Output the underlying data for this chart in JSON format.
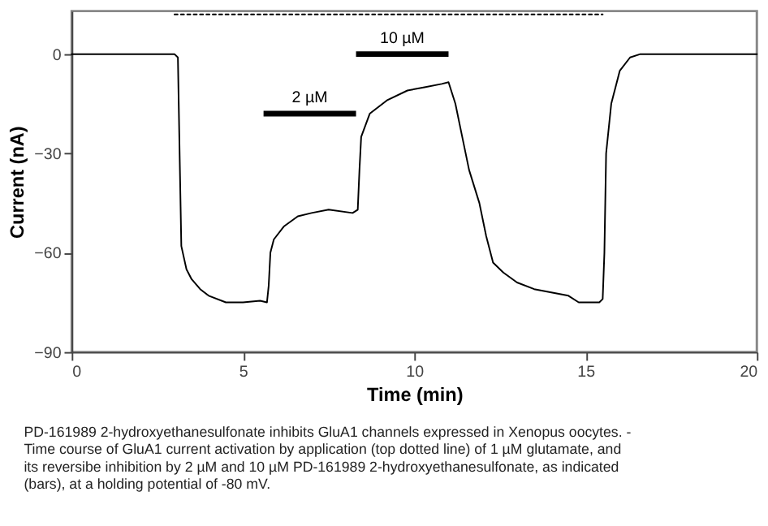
{
  "chart_data": {
    "type": "line",
    "xlabel": "Time (min)",
    "ylabel": "Current (nA)",
    "xlim": [
      0,
      20
    ],
    "ylim": [
      -90,
      13
    ],
    "xticks": [
      0,
      5,
      10,
      15,
      20
    ],
    "yticks": [
      -90,
      -60,
      -30,
      0
    ],
    "grid": false,
    "marker": "none",
    "series": [
      {
        "color": "#000000",
        "line_style": "solid",
        "x": [
          0,
          0.5,
          1,
          1.5,
          2,
          2.5,
          3.0,
          3.1,
          3.15,
          3.2,
          3.35,
          3.5,
          3.75,
          4,
          4.5,
          5,
          5.5,
          5.7,
          5.75,
          5.8,
          5.9,
          6.2,
          6.6,
          7,
          7.5,
          8.2,
          8.35,
          8.4,
          8.45,
          8.7,
          9.2,
          9.8,
          10.3,
          10.8,
          11.0,
          11.2,
          11.4,
          11.6,
          11.9,
          12.1,
          12.3,
          12.6,
          13.0,
          13.5,
          14,
          14.5,
          14.8,
          15.4,
          15.5,
          15.55,
          15.6,
          15.75,
          16.0,
          16.3,
          16.6,
          17,
          18,
          19,
          20
        ],
        "values": [
          0,
          0,
          0,
          0,
          0,
          0,
          0,
          -1,
          -30,
          -58,
          -65,
          -68,
          -71,
          -73,
          -75,
          -75,
          -74.5,
          -75,
          -70,
          -60,
          -56,
          -52,
          -49,
          -48,
          -47,
          -48,
          -47,
          -35,
          -25,
          -18,
          -14,
          -11,
          -10,
          -9,
          -8.5,
          -15,
          -25,
          -35,
          -45,
          -55,
          -63,
          -66,
          -69,
          -71,
          -72,
          -73,
          -75,
          -75,
          -74,
          -60,
          -30,
          -15,
          -5,
          -1,
          0,
          0,
          0,
          0,
          0
        ]
      },
      {
        "color": "#000000",
        "line_style": "dotted",
        "x": [
          3.0,
          15.5
        ],
        "values": [
          12,
          12
        ]
      },
      {
        "name": "2 µM",
        "color": "#000000",
        "line_style": "solid",
        "x": [
          5.6,
          8.3
        ],
        "values": [
          -18,
          -18
        ]
      },
      {
        "name": "10 µM",
        "color": "#000000",
        "line_style": "solid",
        "x": [
          8.3,
          11.0
        ],
        "values": [
          0,
          0
        ]
      }
    ],
    "annotations": [
      "PD-161989 2-hydroxyethanesulfonate inhibits GluA1 channels expressed in Xenopus oocytes.  - Time course of GluA1 current activation by application (top dotted line) of 1 µM glutamate, and its reversibe inhibition by 2 µM and 10 µM PD-161989 2-hydroxyethanesulfonate, as indicated (bars), at a holding potential of -80 mV."
    ]
  }
}
